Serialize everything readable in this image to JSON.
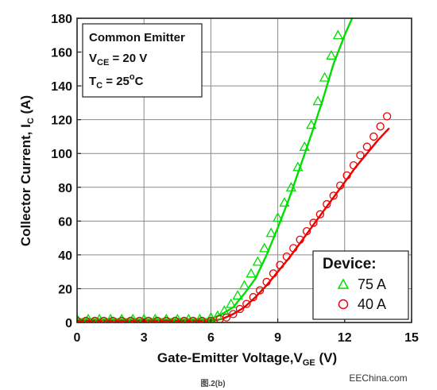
{
  "chart_data": {
    "type": "line",
    "title": "",
    "xlabel": "Gate-Emitter Voltage,V",
    "xlabel_sub": "GE",
    "xlabel_suffix": " (V)",
    "ylabel": "Collector Current, I",
    "ylabel_sub": "C",
    "ylabel_suffix": " (A)",
    "xlim": [
      0,
      15
    ],
    "ylim": [
      0,
      180
    ],
    "xticks": [
      0,
      3,
      6,
      9,
      12,
      15
    ],
    "yticks": [
      0,
      20,
      40,
      60,
      80,
      100,
      120,
      140,
      160,
      180
    ],
    "grid": true,
    "conditions": {
      "line1": "Common Emitter",
      "line2_main": "V",
      "line2_sub": "CE",
      "line2_value": " = 20 V",
      "line3_main": "T",
      "line3_sub": "C",
      "line3_value": " = 25",
      "line3_deg": "o",
      "line3_unit": "C"
    },
    "legend": {
      "title": "Device:",
      "placement": "bottom-right"
    },
    "series": [
      {
        "name": "75 A",
        "color": "#00dd00",
        "marker": "triangle",
        "line_x": [
          0,
          6.0,
          6.5,
          7.0,
          7.5,
          8.0,
          8.5,
          9.0,
          9.5,
          10.0,
          10.5,
          11.0,
          11.5,
          12.0,
          12.5
        ],
        "line_y": [
          2,
          2,
          5,
          9,
          17,
          26,
          40,
          56,
          73,
          92,
          111,
          131,
          153,
          170,
          185
        ],
        "points_x": [
          0,
          0.5,
          1.0,
          1.5,
          2.0,
          2.5,
          3.0,
          3.5,
          4.0,
          4.5,
          5.0,
          5.5,
          6.0,
          6.3,
          6.6,
          6.9,
          7.2,
          7.5,
          7.8,
          8.1,
          8.4,
          8.7,
          9.0,
          9.3,
          9.6,
          9.9,
          10.2,
          10.5,
          10.8,
          11.1,
          11.4,
          11.7
        ],
        "points_y": [
          2,
          2,
          2,
          2,
          2,
          2,
          2,
          2,
          2,
          2,
          2,
          2,
          3,
          4,
          7,
          11,
          16,
          22,
          29,
          36,
          44,
          53,
          62,
          71,
          80,
          92,
          104,
          117,
          131,
          145,
          158,
          170
        ]
      },
      {
        "name": "40 A",
        "color": "#ee0000",
        "marker": "circle",
        "line_x": [
          0,
          6.0,
          6.5,
          7.0,
          7.5,
          8.0,
          8.5,
          9.0,
          9.5,
          10.0,
          10.5,
          11.0,
          11.5,
          12.0,
          12.5,
          13.0,
          13.5,
          14.0
        ],
        "line_y": [
          1,
          1,
          2,
          5,
          9,
          15,
          22,
          30,
          38,
          47,
          56,
          65,
          74,
          83,
          92,
          100,
          108,
          115
        ],
        "points_x": [
          0,
          0.4,
          0.8,
          1.2,
          1.6,
          2.0,
          2.4,
          2.8,
          3.2,
          3.6,
          4.0,
          4.4,
          4.8,
          5.2,
          5.6,
          6.0,
          6.4,
          6.7,
          7.0,
          7.3,
          7.6,
          7.9,
          8.2,
          8.5,
          8.8,
          9.1,
          9.4,
          9.7,
          10.0,
          10.3,
          10.6,
          10.9,
          11.2,
          11.5,
          11.8,
          12.1,
          12.4,
          12.7,
          13.0,
          13.3,
          13.6,
          13.9
        ],
        "points_y": [
          1,
          1,
          1,
          1,
          1,
          1,
          1,
          1,
          1,
          1,
          1,
          1,
          1,
          1,
          1,
          1,
          2,
          3,
          5,
          8,
          11,
          15,
          19,
          24,
          29,
          34,
          39,
          44,
          49,
          54,
          59,
          64,
          70,
          75,
          81,
          87,
          93,
          99,
          104,
          110,
          116,
          122
        ]
      }
    ]
  },
  "caption": "图.2(b)",
  "watermark": "EEChina.com"
}
